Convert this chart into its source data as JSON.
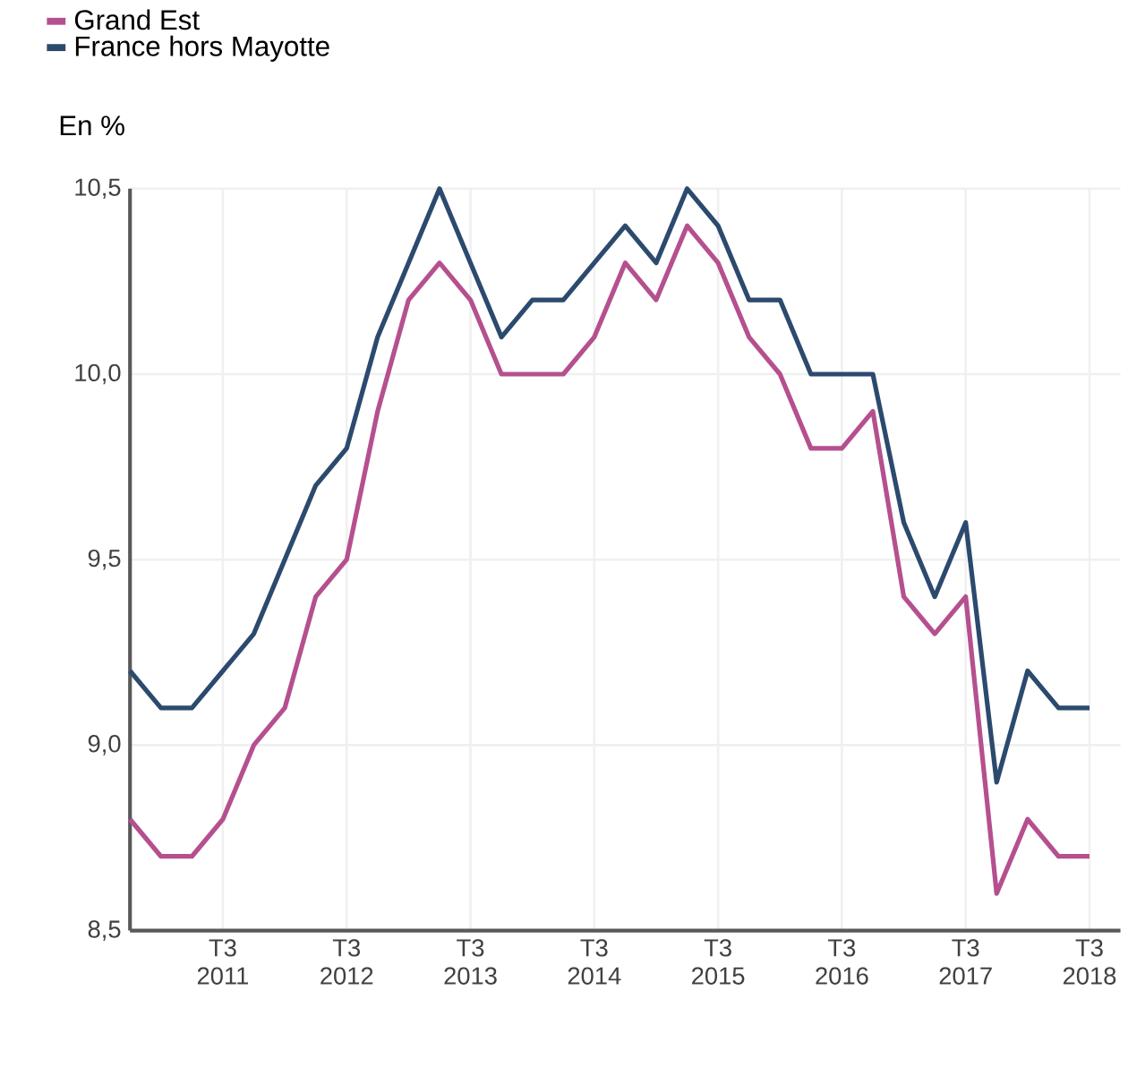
{
  "chart_data": {
    "type": "line",
    "ylabel": "En %",
    "categories": [
      null,
      null,
      null,
      "T3 2011",
      null,
      null,
      null,
      "T3 2012",
      null,
      null,
      null,
      "T3 2013",
      null,
      null,
      null,
      "T3 2014",
      null,
      null,
      null,
      "T3 2015",
      null,
      null,
      null,
      "T3 2016",
      null,
      null,
      null,
      "T3 2017",
      null,
      null,
      null,
      "T3 2018"
    ],
    "series": [
      {
        "name": "Grand Est",
        "color": "#b5508f",
        "values": [
          8.8,
          8.7,
          8.7,
          8.8,
          9.0,
          9.1,
          9.4,
          9.5,
          9.9,
          10.2,
          10.3,
          10.2,
          10.0,
          10.0,
          10.0,
          10.1,
          10.3,
          10.2,
          10.4,
          10.3,
          10.1,
          10.0,
          9.8,
          9.8,
          9.9,
          9.4,
          9.3,
          9.4,
          8.6,
          8.8,
          8.7,
          8.7
        ]
      },
      {
        "name": "France hors Mayotte",
        "color": "#2c4a6e",
        "values": [
          9.2,
          9.1,
          9.1,
          9.2,
          9.3,
          9.5,
          9.7,
          9.8,
          10.1,
          10.3,
          10.5,
          10.3,
          10.1,
          10.2,
          10.2,
          10.3,
          10.4,
          10.3,
          10.5,
          10.4,
          10.2,
          10.2,
          10.0,
          10.0,
          10.0,
          9.6,
          9.4,
          9.6,
          8.9,
          9.2,
          9.1,
          9.1
        ]
      }
    ],
    "ylim": [
      8.5,
      10.5
    ],
    "yticks": [
      {
        "value": 8.5,
        "label": "8,5"
      },
      {
        "value": 9.0,
        "label": "9,0"
      },
      {
        "value": 9.5,
        "label": "9,5"
      },
      {
        "value": 10.0,
        "label": "10,0"
      },
      {
        "value": 10.5,
        "label": "10,5"
      }
    ],
    "grid": true,
    "legend": "top left",
    "marker": "none",
    "line_style": "solid"
  }
}
